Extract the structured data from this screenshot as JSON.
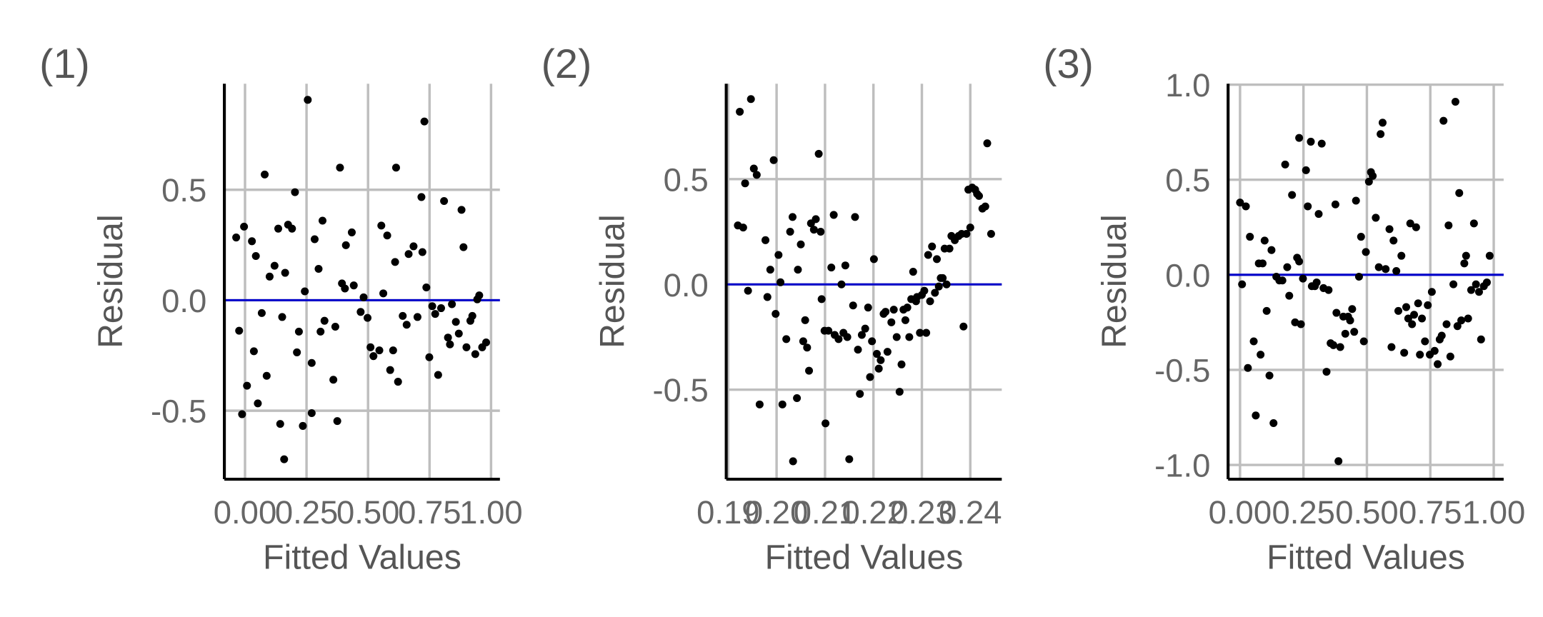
{
  "chart_data": [
    {
      "type": "scatter",
      "label": "(1)",
      "x_label": "Fitted Values",
      "y_label": "Residual",
      "color": "#000000",
      "grid": true,
      "hline": 0,
      "hline_color": "#0000cc",
      "xlim": [
        -0.084,
        1.036
      ],
      "ylim": [
        -0.81,
        0.98
      ],
      "xticks": [
        {
          "value": 0,
          "label": "0.00"
        },
        0.25,
        {
          "value": 0.5,
          "label": "0.50"
        },
        0.75,
        {
          "value": 1,
          "label": "1.00"
        }
      ],
      "yticks": [
        -0.5,
        {
          "value": 0,
          "label": "0.0"
        },
        0.5
      ],
      "x": [
        -0.036,
        -0.004,
        -0.024,
        -0.012,
        0.008,
        0.028,
        0.036,
        0.044,
        0.052,
        0.068,
        0.08,
        0.088,
        0.1,
        0.12,
        0.135,
        0.143,
        0.151,
        0.163,
        0.175,
        0.191,
        0.203,
        0.211,
        0.219,
        0.235,
        0.243,
        0.255,
        0.271,
        0.283,
        0.299,
        0.307,
        0.315,
        0.323,
        0.271,
        0.359,
        0.367,
        0.375,
        0.386,
        0.394,
        0.406,
        0.41,
        0.434,
        0.442,
        0.47,
        0.482,
        0.498,
        0.51,
        0.522,
        0.546,
        0.554,
        0.562,
        0.578,
        0.59,
        0.602,
        0.61,
        0.614,
        0.622,
        0.641,
        0.657,
        0.665,
        0.685,
        0.701,
        0.717,
        0.721,
        0.737,
        0.749,
        0.729,
        0.761,
        0.773,
        0.785,
        0.797,
        0.809,
        0.825,
        0.833,
        0.841,
        0.869,
        0.88,
        0.888,
        0.9,
        0.916,
        0.924,
        0.936,
        0.944,
        0.952,
        0.964,
        0.98,
        0.857,
        0.159
      ],
      "y": [
        0.284,
        0.333,
        -0.138,
        -0.516,
        -0.387,
        0.267,
        -0.231,
        0.2,
        -0.467,
        -0.058,
        0.569,
        -0.342,
        0.107,
        0.156,
        0.324,
        -0.56,
        -0.076,
        0.124,
        0.342,
        0.324,
        0.489,
        -0.236,
        -0.142,
        -0.569,
        0.04,
        0.907,
        -0.284,
        0.276,
        0.142,
        -0.142,
        0.36,
        -0.093,
        -0.511,
        -0.36,
        -0.12,
        -0.547,
        0.6,
        0.076,
        0.053,
        0.249,
        0.307,
        0.067,
        -0.053,
        0.013,
        -0.08,
        -0.213,
        -0.253,
        -0.227,
        0.338,
        0.031,
        0.293,
        -0.316,
        -0.227,
        0.173,
        0.6,
        -0.369,
        -0.071,
        -0.111,
        0.209,
        0.244,
        -0.076,
        0.467,
        0.218,
        0.058,
        -0.258,
        0.809,
        -0.027,
        -0.062,
        -0.338,
        -0.036,
        0.449,
        -0.169,
        -0.2,
        -0.018,
        -0.151,
        0.409,
        0.24,
        -0.213,
        -0.093,
        -0.071,
        -0.244,
        0.004,
        0.022,
        -0.213,
        -0.191,
        -0.098,
        -0.72
      ]
    },
    {
      "type": "scatter",
      "label": "(2)",
      "x_label": "Fitted Values",
      "y_label": "Residual",
      "color": "#000000",
      "grid": true,
      "hline": 0,
      "hline_color": "#0000cc",
      "xlim": [
        0.1896,
        0.2465
      ],
      "ylim": [
        -0.925,
        0.953
      ],
      "xticks": [
        0.19,
        {
          "value": 0.2,
          "label": "0.20"
        },
        0.21,
        0.22,
        0.23,
        0.24
      ],
      "yticks": [
        -0.5,
        {
          "value": 0,
          "label": "0.0"
        },
        0.5
      ],
      "x": [
        0.1924,
        0.1947,
        0.192,
        0.1931,
        0.1941,
        0.1935,
        0.1953,
        0.1959,
        0.1965,
        0.1977,
        0.1981,
        0.1987,
        0.1994,
        0.1998,
        0.2004,
        0.2008,
        0.2012,
        0.202,
        0.2028,
        0.2033,
        0.2034,
        0.2042,
        0.2044,
        0.205,
        0.2055,
        0.2059,
        0.2063,
        0.2067,
        0.2071,
        0.2077,
        0.2081,
        0.2087,
        0.2091,
        0.2093,
        0.2099,
        0.2101,
        0.2107,
        0.2113,
        0.2118,
        0.212,
        0.2128,
        0.2134,
        0.2138,
        0.2142,
        0.2146,
        0.215,
        0.2158,
        0.2162,
        0.2168,
        0.2172,
        0.2176,
        0.2183,
        0.2189,
        0.2193,
        0.2197,
        0.2201,
        0.2207,
        0.2211,
        0.2215,
        0.2221,
        0.2225,
        0.2229,
        0.2237,
        0.2242,
        0.2248,
        0.2254,
        0.2258,
        0.2262,
        0.2266,
        0.227,
        0.2274,
        0.2278,
        0.2282,
        0.2288,
        0.229,
        0.2296,
        0.23,
        0.2305,
        0.2309,
        0.2313,
        0.2317,
        0.2321,
        0.2327,
        0.2331,
        0.2335,
        0.2339,
        0.2343,
        0.2347,
        0.2351,
        0.2357,
        0.2361,
        0.2368,
        0.2376,
        0.2382,
        0.2386,
        0.2392,
        0.2396,
        0.24,
        0.2404,
        0.241,
        0.2414,
        0.2418,
        0.2425,
        0.2431,
        0.2435,
        0.2443
      ],
      "y": [
        0.82,
        0.88,
        0.28,
        0.27,
        -0.03,
        0.48,
        0.55,
        0.52,
        -0.57,
        0.21,
        -0.06,
        0.07,
        0.59,
        -0.14,
        0.14,
        0.01,
        -0.57,
        -0.26,
        0.25,
        0.32,
        -0.84,
        -0.54,
        0.07,
        0.19,
        -0.27,
        -0.17,
        -0.3,
        -0.41,
        0.29,
        0.26,
        0.31,
        0.62,
        0.25,
        -0.07,
        -0.22,
        -0.66,
        -0.22,
        0.08,
        0.33,
        -0.24,
        -0.26,
        0.0,
        -0.23,
        0.09,
        -0.25,
        -0.83,
        -0.1,
        0.32,
        -0.31,
        -0.52,
        -0.24,
        -0.21,
        -0.11,
        -0.44,
        -0.27,
        0.12,
        -0.33,
        -0.4,
        -0.36,
        -0.14,
        -0.13,
        -0.32,
        -0.18,
        -0.12,
        -0.25,
        -0.51,
        -0.38,
        -0.12,
        -0.17,
        -0.11,
        -0.25,
        -0.07,
        0.06,
        -0.08,
        -0.06,
        -0.23,
        -0.05,
        -0.03,
        -0.23,
        0.14,
        -0.08,
        0.18,
        -0.04,
        0.12,
        -0.01,
        0.03,
        0.03,
        0.17,
        0.0,
        0.17,
        0.23,
        0.21,
        0.23,
        0.24,
        -0.2,
        0.24,
        0.45,
        0.27,
        0.46,
        0.45,
        0.43,
        0.42,
        0.36,
        0.37,
        0.67,
        0.24
      ]
    },
    {
      "type": "scatter",
      "label": "(3)",
      "x_label": "Fitted Values",
      "y_label": "Residual",
      "color": "#000000",
      "grid": true,
      "hline": 0,
      "hline_color": "#0000cc",
      "xlim": [
        -0.047,
        1.039
      ],
      "ylim": [
        -1.075,
        1.005
      ],
      "xticks": [
        {
          "value": 0,
          "label": "0.00"
        },
        0.25,
        {
          "value": 0.5,
          "label": "0.50"
        },
        0.75,
        {
          "value": 1,
          "label": "1.00"
        }
      ],
      "yticks": [
        {
          "value": -1,
          "label": "-1.0"
        },
        -0.5,
        {
          "value": 0,
          "label": "0.0"
        },
        0.5,
        {
          "value": 1,
          "label": "1.0"
        }
      ],
      "x": [
        0.0,
        0.023,
        0.008,
        0.031,
        0.039,
        0.054,
        0.062,
        0.074,
        0.081,
        0.089,
        0.097,
        0.105,
        0.116,
        0.124,
        0.132,
        0.143,
        0.155,
        0.167,
        0.178,
        0.186,
        0.194,
        0.205,
        0.217,
        0.225,
        0.233,
        0.233,
        0.24,
        0.248,
        0.26,
        0.267,
        0.279,
        0.283,
        0.295,
        0.302,
        0.31,
        0.322,
        0.329,
        0.341,
        0.349,
        0.357,
        0.368,
        0.376,
        0.38,
        0.388,
        0.395,
        0.407,
        0.415,
        0.426,
        0.434,
        0.442,
        0.45,
        0.457,
        0.469,
        0.477,
        0.488,
        0.496,
        0.508,
        0.516,
        0.523,
        0.535,
        0.547,
        0.554,
        0.562,
        0.574,
        0.589,
        0.597,
        0.605,
        0.616,
        0.624,
        0.636,
        0.647,
        0.655,
        0.663,
        0.671,
        0.678,
        0.686,
        0.694,
        0.702,
        0.709,
        0.717,
        0.729,
        0.74,
        0.748,
        0.756,
        0.767,
        0.779,
        0.787,
        0.795,
        0.802,
        0.814,
        0.822,
        0.829,
        0.841,
        0.849,
        0.857,
        0.864,
        0.872,
        0.884,
        0.891,
        0.899,
        0.911,
        0.922,
        0.93,
        0.942,
        0.95,
        0.961,
        0.973,
        0.984
      ],
      "y": [
        0.38,
        0.36,
        -0.05,
        -0.49,
        0.2,
        -0.35,
        -0.74,
        0.06,
        -0.42,
        0.06,
        0.18,
        -0.19,
        -0.53,
        0.13,
        -0.78,
        -0.01,
        -0.03,
        -0.03,
        0.58,
        0.04,
        -0.11,
        0.42,
        -0.25,
        0.09,
        0.07,
        0.72,
        -0.26,
        -0.02,
        0.55,
        0.36,
        0.7,
        -0.06,
        -0.06,
        -0.04,
        0.32,
        0.69,
        -0.07,
        -0.51,
        -0.08,
        -0.36,
        -0.37,
        0.37,
        -0.2,
        -0.98,
        -0.38,
        -0.22,
        -0.31,
        -0.22,
        -0.24,
        -0.18,
        -0.3,
        0.39,
        -0.01,
        0.2,
        -0.35,
        0.12,
        0.49,
        0.54,
        0.52,
        0.3,
        0.04,
        0.74,
        0.8,
        0.03,
        0.24,
        -0.38,
        0.18,
        0.02,
        -0.19,
        0.1,
        -0.41,
        -0.17,
        -0.23,
        0.27,
        -0.26,
        -0.21,
        0.25,
        -0.15,
        -0.42,
        -0.23,
        -0.35,
        -0.16,
        -0.42,
        -0.09,
        -0.4,
        -0.47,
        -0.34,
        -0.32,
        0.81,
        -0.26,
        0.26,
        -0.43,
        -0.05,
        0.91,
        -0.27,
        0.43,
        -0.24,
        0.06,
        0.1,
        -0.23,
        -0.08,
        0.27,
        -0.05,
        -0.09,
        -0.34,
        -0.06,
        -0.04,
        0.1
      ]
    }
  ]
}
